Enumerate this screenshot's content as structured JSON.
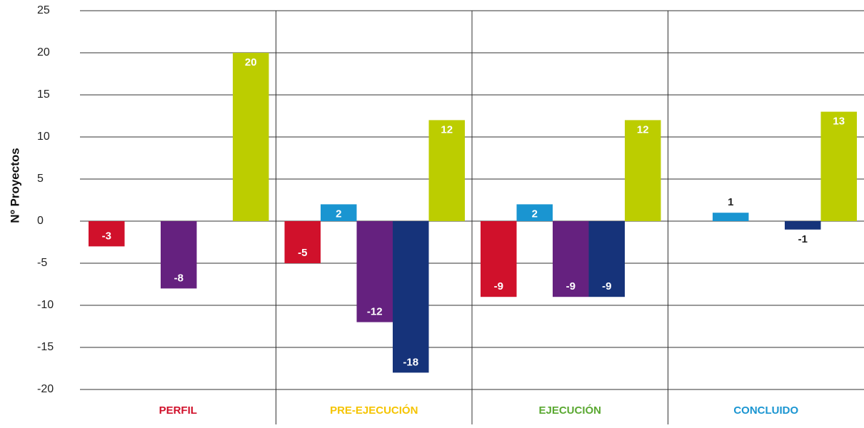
{
  "chart_data": {
    "type": "bar",
    "y_label": "Nº Proyectos",
    "categories": [
      "PERFIL",
      "PRE-EJECUCIÓN",
      "EJECUCIÓN",
      "CONCLUIDO"
    ],
    "category_colors": [
      "#d0112b",
      "#f5c400",
      "#5aa831",
      "#1a95d1"
    ],
    "series": [
      {
        "color": "#d0112b",
        "values": [
          -3,
          -5,
          -9,
          null
        ]
      },
      {
        "color": "#1a95d1",
        "values": [
          null,
          2,
          2,
          1
        ]
      },
      {
        "color": "#65217f",
        "values": [
          -8,
          -12,
          -9,
          null
        ]
      },
      {
        "color": "#16337a",
        "values": [
          null,
          -18,
          -9,
          -1
        ]
      },
      {
        "color": "#bccd00",
        "values": [
          20,
          12,
          12,
          13
        ]
      }
    ],
    "ylim": [
      -20,
      25
    ],
    "yticks": [
      -20,
      -15,
      -10,
      -5,
      0,
      5,
      10,
      15,
      20,
      25
    ],
    "grid": true
  }
}
